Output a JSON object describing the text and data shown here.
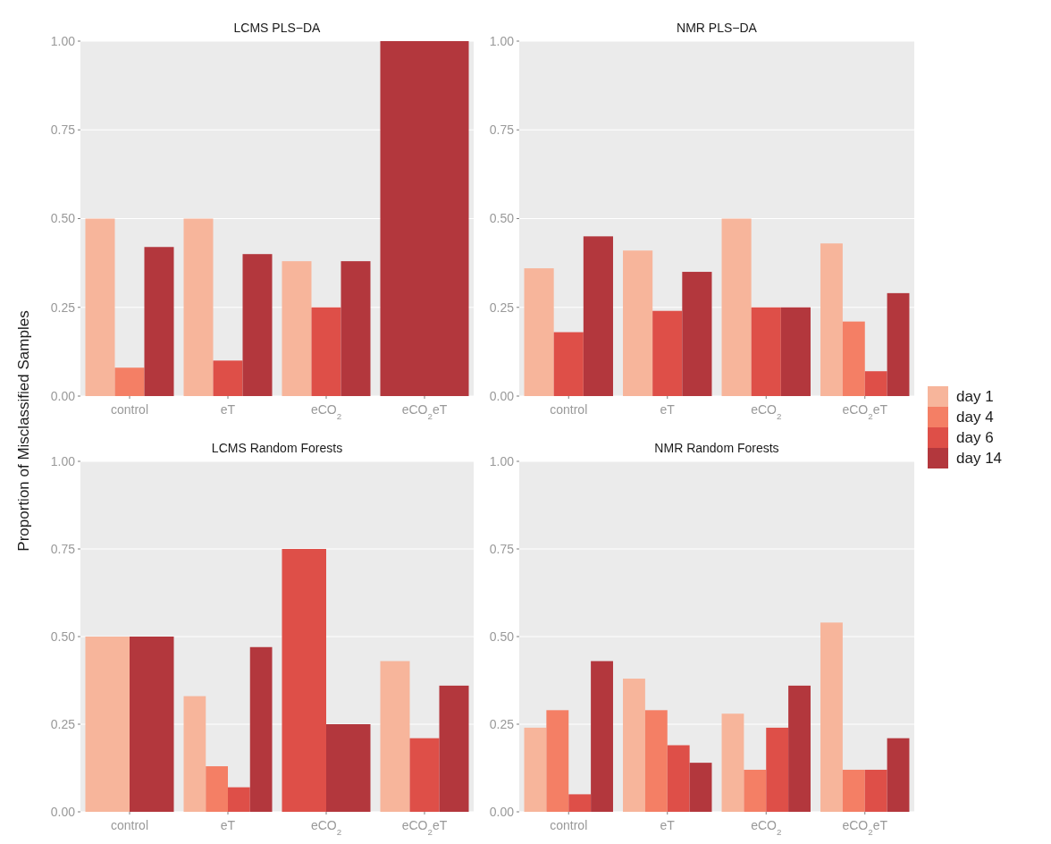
{
  "chart_data": [
    {
      "type": "bar",
      "title": "LCMS PLS−DA",
      "ylabel": "Proportion of Misclassified Samples",
      "categories": [
        "control",
        "eT",
        "eCO$_{2}$",
        "eCO$_{2}$eT"
      ],
      "ylim": [
        0,
        1
      ],
      "yticks": [
        {
          "value": 0,
          "label": "0.00"
        },
        {
          "value": 0.25,
          "label": "0.25"
        },
        {
          "value": 0.5,
          "label": "0.50"
        },
        {
          "value": 0.75,
          "label": "0.75"
        },
        {
          "value": 1,
          "label": "1.00"
        }
      ],
      "grid": "y",
      "legend": "right",
      "series": [
        {
          "name": "day 1",
          "color": "#f7b59b",
          "values": [
            0.5,
            0.5,
            0.38,
            null
          ]
        },
        {
          "name": "day 4",
          "color": "#f47f65",
          "values": [
            0.08,
            null,
            null,
            null
          ]
        },
        {
          "name": "day 6",
          "color": "#de4f48",
          "values": [
            null,
            0.1,
            0.25,
            null
          ]
        },
        {
          "name": "day 14",
          "color": "#b3373d",
          "values": [
            0.42,
            0.4,
            0.38,
            1.0
          ]
        }
      ]
    },
    {
      "type": "bar",
      "title": "NMR PLS−DA",
      "categories": [
        "control",
        "eT",
        "eCO$_{2}$",
        "eCO$_{2}$eT"
      ],
      "ylim": [
        0,
        1
      ],
      "yticks": [
        {
          "value": 0,
          "label": "0.00"
        },
        {
          "value": 0.25,
          "label": "0.25"
        },
        {
          "value": 0.5,
          "label": "0.50"
        },
        {
          "value": 0.75,
          "label": "0.75"
        },
        {
          "value": 1,
          "label": "1.00"
        }
      ],
      "grid": "y",
      "series": [
        {
          "color": "#f7b59b",
          "values": [
            0.36,
            0.41,
            0.5,
            0.43
          ]
        },
        {
          "color": "#f47f65",
          "values": [
            null,
            null,
            null,
            0.21
          ]
        },
        {
          "color": "#de4f48",
          "values": [
            0.18,
            0.24,
            0.25,
            0.07
          ]
        },
        {
          "color": "#b3373d",
          "values": [
            0.45,
            0.35,
            0.25,
            0.29
          ]
        }
      ]
    },
    {
      "type": "bar",
      "title": "LCMS Random Forests",
      "categories": [
        "control",
        "eT",
        "eCO$_{2}$",
        "eCO$_{2}$eT"
      ],
      "ylim": [
        0,
        1
      ],
      "yticks": [
        {
          "value": 0,
          "label": "0.00"
        },
        {
          "value": 0.25,
          "label": "0.25"
        },
        {
          "value": 0.5,
          "label": "0.50"
        },
        {
          "value": 0.75,
          "label": "0.75"
        },
        {
          "value": 1,
          "label": "1.00"
        }
      ],
      "grid": "y",
      "series": [
        {
          "color": "#f7b59b",
          "values": [
            0.5,
            0.33,
            null,
            0.43
          ]
        },
        {
          "color": "#f47f65",
          "values": [
            null,
            0.13,
            null,
            null
          ]
        },
        {
          "color": "#de4f48",
          "values": [
            null,
            0.07,
            0.75,
            0.21
          ]
        },
        {
          "color": "#b3373d",
          "values": [
            0.5,
            0.47,
            0.25,
            0.36
          ]
        }
      ]
    },
    {
      "type": "bar",
      "title": "NMR Random Forests",
      "categories": [
        "control",
        "eT",
        "eCO$_{2}$",
        "eCO$_{2}$eT"
      ],
      "ylim": [
        0,
        1
      ],
      "yticks": [
        {
          "value": 0,
          "label": "0.00"
        },
        {
          "value": 0.25,
          "label": "0.25"
        },
        {
          "value": 0.5,
          "label": "0.50"
        },
        {
          "value": 0.75,
          "label": "0.75"
        },
        {
          "value": 1,
          "label": "1.00"
        }
      ],
      "grid": "y",
      "series": [
        {
          "color": "#f7b59b",
          "values": [
            0.24,
            0.38,
            0.28,
            0.54
          ]
        },
        {
          "color": "#f47f65",
          "values": [
            0.29,
            0.29,
            0.12,
            0.12
          ]
        },
        {
          "color": "#de4f48",
          "values": [
            0.05,
            0.19,
            0.24,
            0.12
          ]
        },
        {
          "color": "#b3373d",
          "values": [
            0.43,
            0.14,
            0.36,
            0.21
          ]
        }
      ]
    }
  ]
}
